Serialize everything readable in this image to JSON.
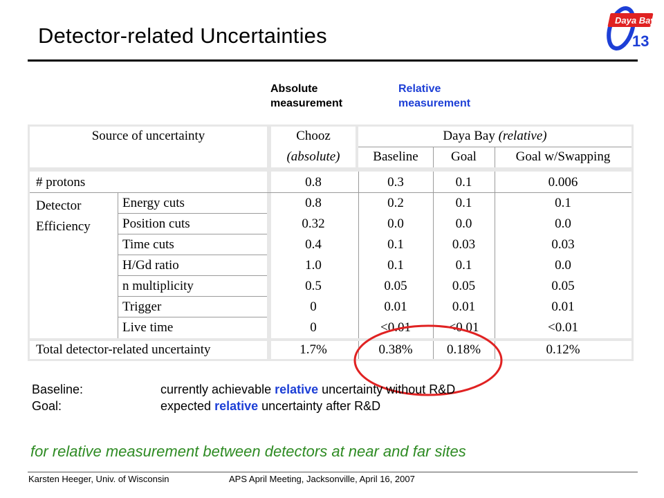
{
  "title": "Detector-related Uncertainties",
  "logo": {
    "text": "Daya Bay",
    "subscript": "13",
    "icon": "theta-13-logo"
  },
  "column_labels": {
    "absolute": "Absolute measurement",
    "relative": "Relative measurement"
  },
  "table": {
    "header": {
      "source": "Source of uncertainty",
      "chooz": "Chooz",
      "chooz_sub": "(absolute)",
      "dayabay": "Daya Bay (relative)",
      "baseline": "Baseline",
      "goal": "Goal",
      "swapping": "Goal w/Swapping"
    },
    "protons": {
      "label": "# protons",
      "chooz": "0.8",
      "baseline": "0.3",
      "goal": "0.1",
      "swapping": "0.006"
    },
    "efficiency_group": "Detector Efficiency",
    "rows": [
      {
        "label": "Energy cuts",
        "chooz": "0.8",
        "baseline": "0.2",
        "goal": "0.1",
        "swapping": "0.1"
      },
      {
        "label": "Position cuts",
        "chooz": "0.32",
        "baseline": "0.0",
        "goal": "0.0",
        "swapping": "0.0"
      },
      {
        "label": "Time cuts",
        "chooz": "0.4",
        "baseline": "0.1",
        "goal": "0.03",
        "swapping": "0.03"
      },
      {
        "label": "H/Gd ratio",
        "chooz": "1.0",
        "baseline": "0.1",
        "goal": "0.1",
        "swapping": "0.0"
      },
      {
        "label": "n multiplicity",
        "chooz": "0.5",
        "baseline": "0.05",
        "goal": "0.05",
        "swapping": "0.05"
      },
      {
        "label": "Trigger",
        "chooz": "0",
        "baseline": "0.01",
        "goal": "0.01",
        "swapping": "0.01"
      },
      {
        "label": "Live time",
        "chooz": "0",
        "baseline": "<0.01",
        "goal": "<0.01",
        "swapping": "<0.01"
      }
    ],
    "total": {
      "label": "Total detector-related uncertainty",
      "chooz": "1.7%",
      "baseline": "0.38%",
      "goal": "0.18%",
      "swapping": "0.12%"
    }
  },
  "highlight_color": "#e02222",
  "definitions": [
    {
      "label": "Baseline:",
      "pre": "currently achievable ",
      "em": "relative",
      "post": " uncertainty without R&D"
    },
    {
      "label": "Goal:",
      "pre": "expected ",
      "em": "relative",
      "post": " uncertainty after R&D"
    }
  ],
  "note": "for relative measurement between detectors at near and far sites",
  "footer": {
    "author": "Karsten Heeger, Univ. of Wisconsin",
    "event": "APS April Meeting, Jacksonville, April 16, 2007"
  }
}
